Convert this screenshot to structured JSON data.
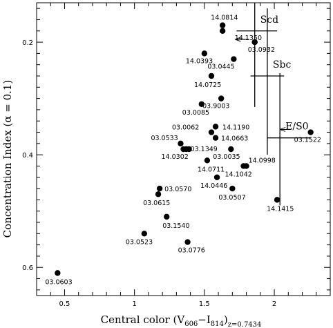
{
  "chart_data": {
    "type": "scatter",
    "xlabel": "Central color (V606 - I814)z=0.7434",
    "ylabel": "Concentration Index (α = 0.1)",
    "xlim": [
      0.3,
      2.4
    ],
    "ylim": [
      0.65,
      0.13
    ],
    "x_inverted": false,
    "y_inverted": true,
    "grid": false,
    "x_ticks": [
      0.5,
      1,
      1.5,
      2
    ],
    "x_tick_labels": [
      "0.5",
      "1",
      "1.5",
      "2"
    ],
    "y_ticks": [
      0.2,
      0.4,
      0.6
    ],
    "y_tick_labels": [
      "0.2",
      "0.4",
      "0.6"
    ],
    "points": [
      {
        "label": "14.0814",
        "x": 1.63,
        "y": 0.17
      },
      {
        "label": "",
        "x": 1.63,
        "y": 0.18
      },
      {
        "label": "03.0932",
        "x": 1.86,
        "y": 0.2
      },
      {
        "label": "14.1350",
        "x": 1.86,
        "y": 0.2
      },
      {
        "label": "14.0393",
        "x": 1.5,
        "y": 0.22
      },
      {
        "label": "03.0445",
        "x": 1.71,
        "y": 0.23
      },
      {
        "label": "14.0725",
        "x": 1.55,
        "y": 0.26
      },
      {
        "label": "03.9003",
        "x": 1.62,
        "y": 0.3
      },
      {
        "label": "03.0085",
        "x": 1.48,
        "y": 0.31
      },
      {
        "label": "14.1190",
        "x": 1.58,
        "y": 0.35
      },
      {
        "label": "03.0062",
        "x": 1.55,
        "y": 0.36
      },
      {
        "label": "14.0663",
        "x": 1.58,
        "y": 0.37
      },
      {
        "label": "03.0533",
        "x": 1.33,
        "y": 0.38
      },
      {
        "label": "03.1522",
        "x": 2.26,
        "y": 0.36
      },
      {
        "label": "03.1349",
        "x": 1.37,
        "y": 0.39
      },
      {
        "label": "",
        "x": 1.39,
        "y": 0.39
      },
      {
        "label": "03.0035",
        "x": 1.69,
        "y": 0.39
      },
      {
        "label": "14.0302",
        "x": 1.35,
        "y": 0.39
      },
      {
        "label": "14.0711",
        "x": 1.52,
        "y": 0.41
      },
      {
        "label": "14.0998",
        "x": 1.8,
        "y": 0.42
      },
      {
        "label": "14.1042",
        "x": 1.78,
        "y": 0.42
      },
      {
        "label": "14.0446",
        "x": 1.59,
        "y": 0.44
      },
      {
        "label": "03.0570",
        "x": 1.18,
        "y": 0.46
      },
      {
        "label": "03.0507",
        "x": 1.7,
        "y": 0.46
      },
      {
        "label": "03.0615",
        "x": 1.17,
        "y": 0.47
      },
      {
        "label": "14.1415",
        "x": 2.02,
        "y": 0.48
      },
      {
        "label": "03.1540",
        "x": 1.23,
        "y": 0.51
      },
      {
        "label": "03.0523",
        "x": 1.07,
        "y": 0.54
      },
      {
        "label": "03.0776",
        "x": 1.38,
        "y": 0.555
      },
      {
        "label": "03.0603",
        "x": 0.45,
        "y": 0.61
      }
    ],
    "type_markers": [
      {
        "label": "Scd",
        "x": 1.86,
        "y_top": 0.13,
        "y_bottom": 0.315,
        "y_bar": 0.18,
        "x_left": 1.73,
        "x_right": 2.02
      },
      {
        "label": "Sbc",
        "x": 1.95,
        "y_top": 0.14,
        "y_bottom": 0.4,
        "y_bar": 0.26,
        "x_left": 1.83,
        "x_right": 2.07
      },
      {
        "label": "E/S0",
        "x": 2.04,
        "y_top": 0.255,
        "y_bottom": 0.49,
        "y_bar": 0.37,
        "x_left": 1.95,
        "x_right": 2.26
      }
    ],
    "arrows": [
      {
        "from_x": 1.82,
        "to_x": 1.72,
        "y": 0.195
      },
      {
        "from_x": 2.12,
        "to_x": 2.04,
        "y": 0.355
      }
    ]
  },
  "labels": {
    "ylabel": "Concentration Index (α = 0.1)",
    "xlabel_main": "Central color (V",
    "xlabel_sub1": "606",
    "xlabel_mid": "−I",
    "xlabel_sub2": "814",
    "xlabel_close": ")",
    "xlabel_sub3": "z=0.7434"
  }
}
